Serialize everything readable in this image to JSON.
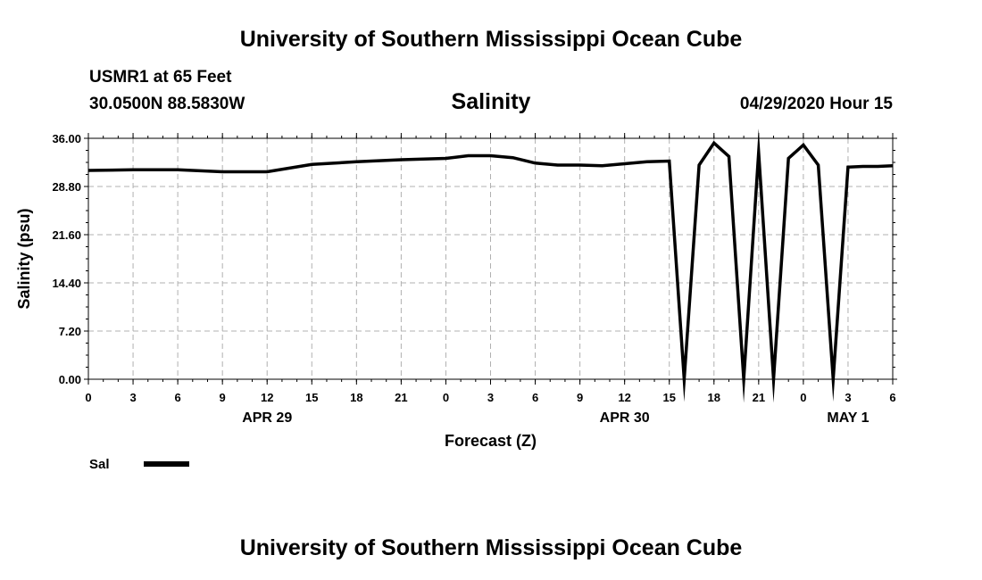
{
  "header": {
    "title": "University of Southern Mississippi Ocean Cube",
    "station": "USMR1 at 65 Feet",
    "coordinates": "30.0500N 88.5830W",
    "chart_title": "Salinity",
    "datetime": "04/29/2020 Hour 15"
  },
  "footer": {
    "title": "University of Southern Mississippi Ocean Cube"
  },
  "colors": {
    "line": "#000000",
    "grid": "#b0b0b0",
    "background": "#ffffff"
  },
  "chart_data": {
    "type": "line",
    "title": "Salinity",
    "xlabel": "Forecast (Z)",
    "ylabel": "Salinity (psu)",
    "ylim": [
      0,
      36
    ],
    "y_ticks": [
      "0.00",
      "7.20",
      "14.40",
      "21.60",
      "28.80",
      "36.00"
    ],
    "xlim": [
      0,
      54
    ],
    "x_ticks": [
      {
        "x": 0,
        "label": "0"
      },
      {
        "x": 3,
        "label": "3"
      },
      {
        "x": 6,
        "label": "6"
      },
      {
        "x": 9,
        "label": "9"
      },
      {
        "x": 12,
        "label": "12"
      },
      {
        "x": 15,
        "label": "15"
      },
      {
        "x": 18,
        "label": "18"
      },
      {
        "x": 21,
        "label": "21"
      },
      {
        "x": 24,
        "label": "0"
      },
      {
        "x": 27,
        "label": "3"
      },
      {
        "x": 30,
        "label": "6"
      },
      {
        "x": 33,
        "label": "9"
      },
      {
        "x": 36,
        "label": "12"
      },
      {
        "x": 39,
        "label": "15"
      },
      {
        "x": 42,
        "label": "18"
      },
      {
        "x": 45,
        "label": "21"
      },
      {
        "x": 48,
        "label": "0"
      },
      {
        "x": 51,
        "label": "3"
      },
      {
        "x": 54,
        "label": "6"
      }
    ],
    "date_labels": [
      {
        "x": 12,
        "label": "APR 29"
      },
      {
        "x": 36,
        "label": "APR 30"
      },
      {
        "x": 51,
        "label": "MAY 1"
      }
    ],
    "grid": true,
    "legend_position": "bottom-left",
    "series": [
      {
        "name": "Sal",
        "x": [
          0,
          3,
          6,
          9,
          12,
          15,
          18,
          21,
          24,
          25.5,
          27,
          28.5,
          30,
          31.5,
          33,
          34.5,
          36,
          37.5,
          39,
          40,
          41,
          42,
          43,
          44,
          45,
          46,
          47,
          48,
          49,
          50,
          51,
          52,
          53,
          54
        ],
        "y": [
          31.2,
          31.3,
          31.3,
          31.0,
          31.0,
          32.1,
          32.5,
          32.8,
          33.0,
          33.4,
          33.4,
          33.1,
          32.3,
          32.0,
          32.0,
          31.9,
          32.2,
          32.5,
          32.6,
          0.0,
          32.0,
          35.3,
          33.3,
          0.0,
          33.9,
          0.0,
          33.0,
          35.0,
          32.0,
          0.0,
          31.7,
          31.8,
          31.8,
          31.9
        ]
      }
    ]
  },
  "legend": {
    "label": "Sal"
  }
}
